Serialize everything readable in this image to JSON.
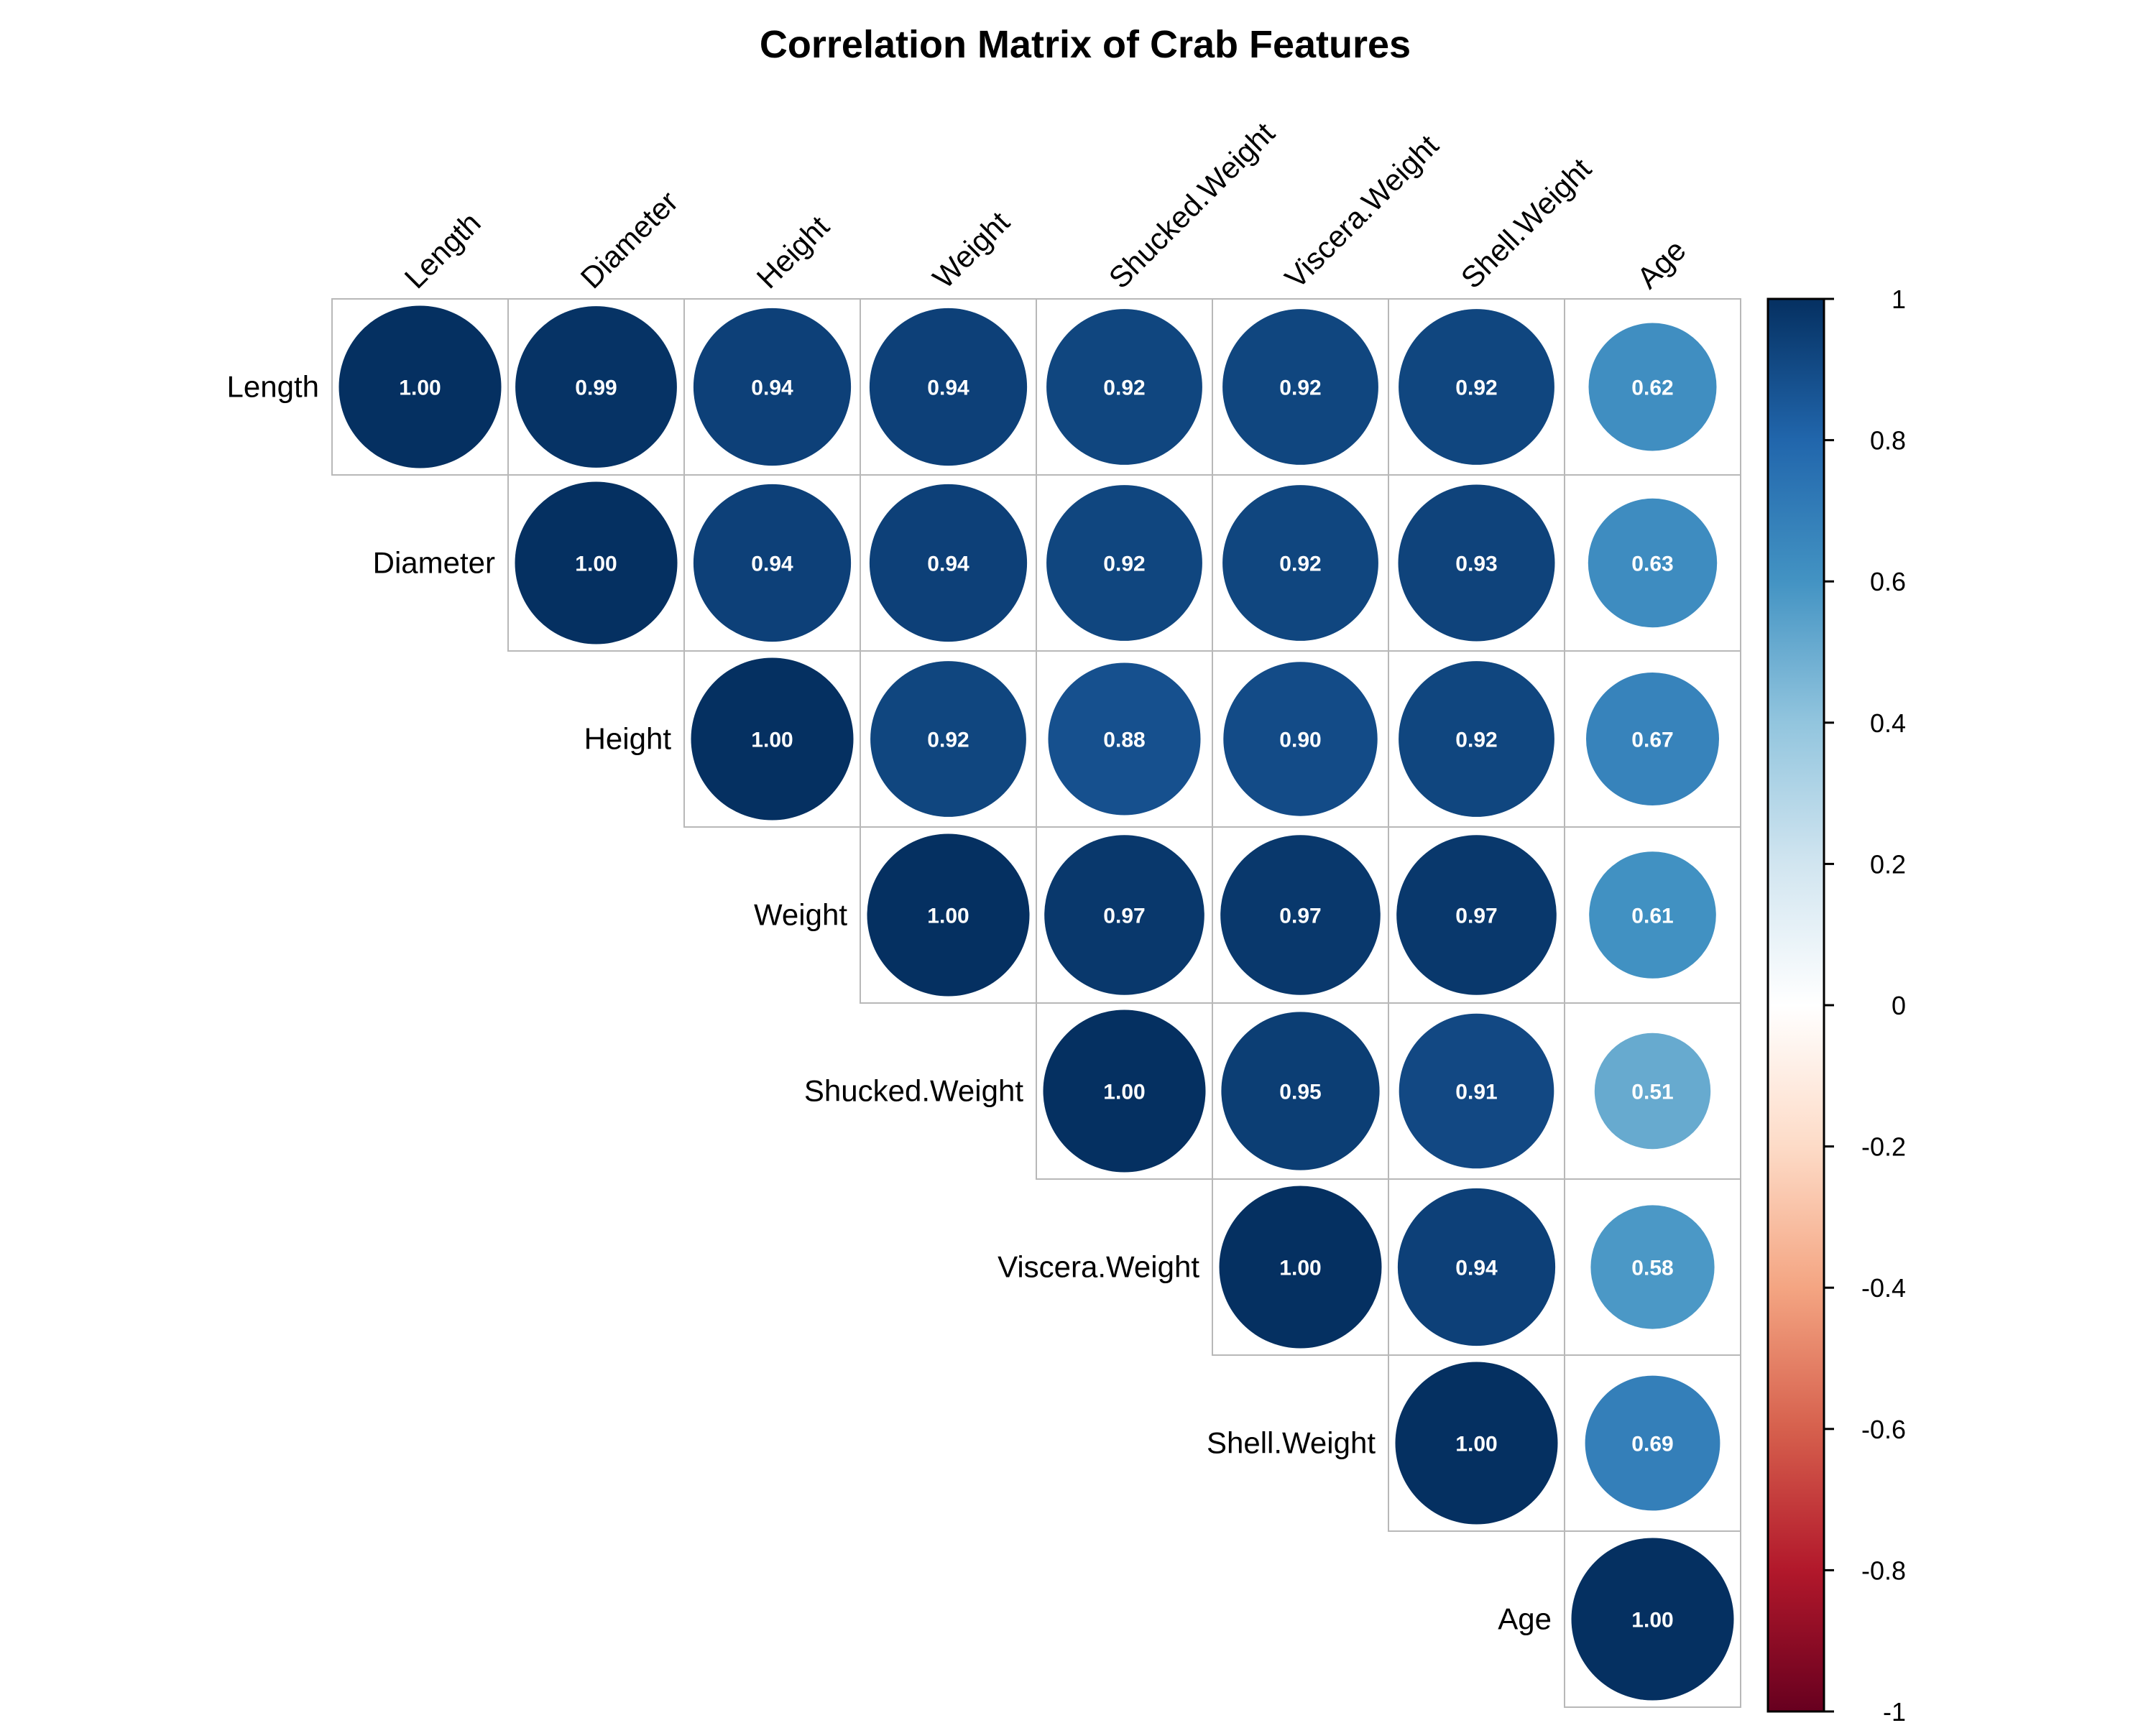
{
  "chart_data": {
    "type": "heatmap",
    "subtype": "correlation-matrix-upper-circles",
    "title": "Correlation Matrix of Crab Features",
    "variables": [
      "Length",
      "Diameter",
      "Height",
      "Weight",
      "Shucked.Weight",
      "Viscera.Weight",
      "Shell.Weight",
      "Age"
    ],
    "matrix": [
      [
        1.0,
        0.99,
        0.94,
        0.94,
        0.92,
        0.92,
        0.92,
        0.62
      ],
      [
        0.99,
        1.0,
        0.94,
        0.94,
        0.92,
        0.92,
        0.93,
        0.63
      ],
      [
        0.94,
        0.94,
        1.0,
        0.92,
        0.88,
        0.9,
        0.92,
        0.67
      ],
      [
        0.94,
        0.94,
        0.92,
        1.0,
        0.97,
        0.97,
        0.97,
        0.61
      ],
      [
        0.92,
        0.92,
        0.88,
        0.97,
        1.0,
        0.95,
        0.91,
        0.51
      ],
      [
        0.92,
        0.92,
        0.9,
        0.97,
        0.95,
        1.0,
        0.94,
        0.58
      ],
      [
        0.92,
        0.93,
        0.92,
        0.97,
        0.91,
        0.94,
        1.0,
        0.69
      ],
      [
        0.62,
        0.63,
        0.67,
        0.61,
        0.51,
        0.58,
        0.69,
        1.0
      ]
    ],
    "shown_triangle": "upper",
    "value_range": [
      -1,
      1
    ],
    "colorbar": {
      "ticks": [
        "1",
        "0.8",
        "0.6",
        "0.4",
        "0.2",
        "0",
        "-0.2",
        "-0.4",
        "-0.6",
        "-0.8",
        "-1"
      ],
      "colors": [
        "#67001F",
        "#B2182B",
        "#D6604D",
        "#F4A582",
        "#FDDBC7",
        "#FFFFFF",
        "#D1E5F0",
        "#92C5DE",
        "#4393C3",
        "#2166AC",
        "#053061"
      ]
    },
    "legend_position": "right",
    "grid": true
  }
}
